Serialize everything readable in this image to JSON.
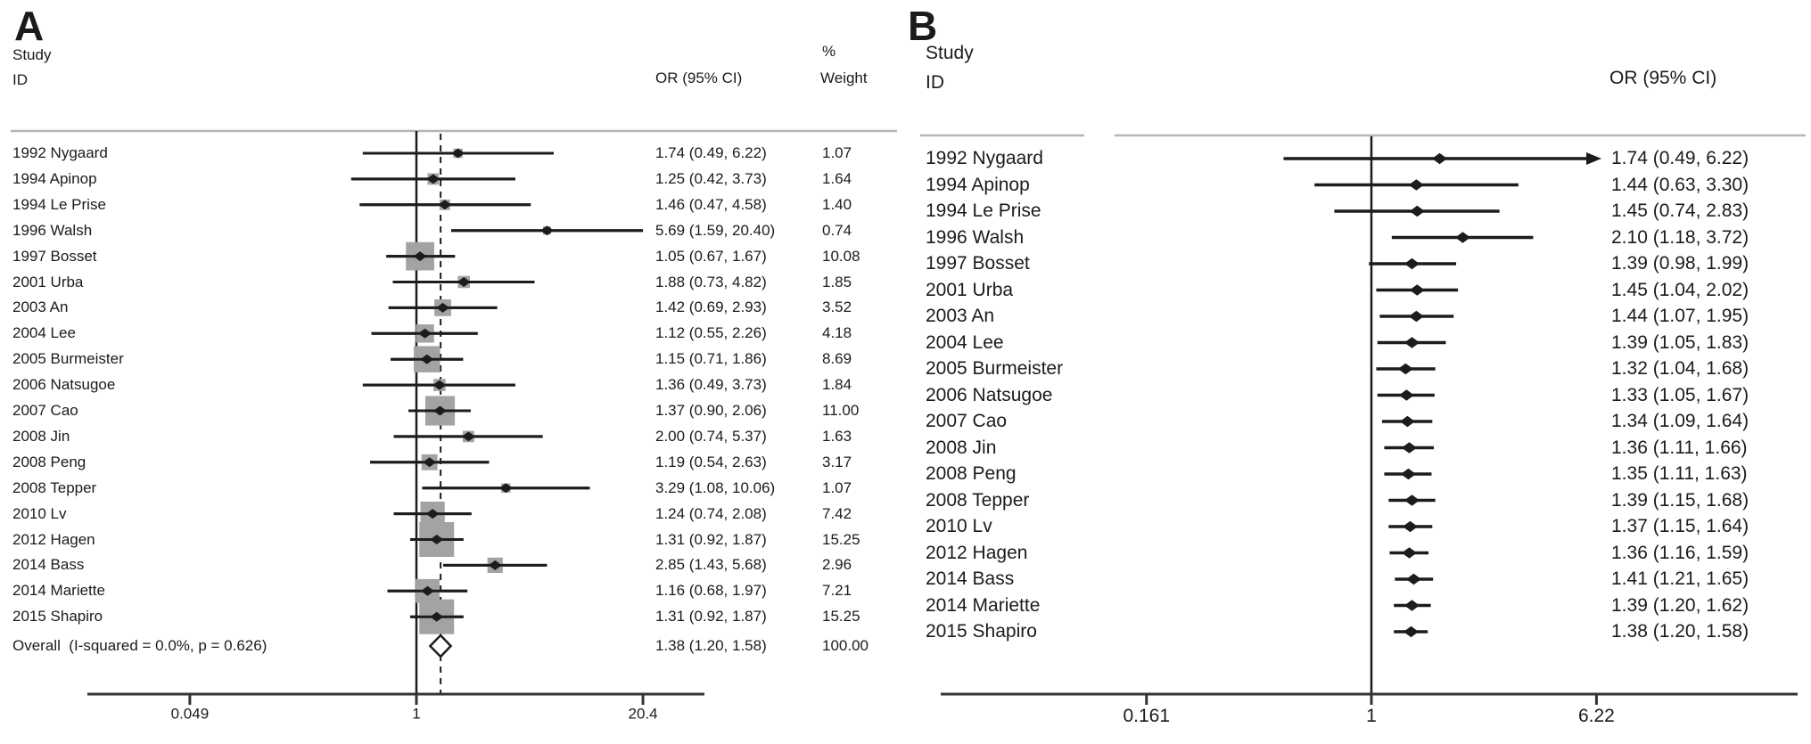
{
  "figure": {
    "panel_a_label": "A",
    "panel_b_label": "B",
    "headers_a": {
      "study": "Study",
      "id": "ID",
      "or": "OR (95% CI)",
      "pct": "%",
      "weight": "Weight"
    },
    "headers_b": {
      "study": "Study",
      "id": "ID",
      "or": "OR (95% CI)"
    }
  },
  "chart_data": [
    {
      "type": "forest",
      "panel": "A",
      "axis_scale": "log",
      "x_ticks": [
        "0.049",
        "1",
        "20.4"
      ],
      "null_line": 1,
      "studies": [
        {
          "id": "1992 Nygaard",
          "est": 1.74,
          "lo": 0.49,
          "hi": 6.22,
          "or_text": "1.74 (0.49, 6.22)",
          "weight": 1.07,
          "weight_text": "1.07"
        },
        {
          "id": "1994 Apinop",
          "est": 1.25,
          "lo": 0.42,
          "hi": 3.73,
          "or_text": "1.25 (0.42, 3.73)",
          "weight": 1.64,
          "weight_text": "1.64"
        },
        {
          "id": "1994 Le Prise",
          "est": 1.46,
          "lo": 0.47,
          "hi": 4.58,
          "or_text": "1.46 (0.47, 4.58)",
          "weight": 1.4,
          "weight_text": "1.40"
        },
        {
          "id": "1996 Walsh",
          "est": 5.69,
          "lo": 1.59,
          "hi": 20.4,
          "or_text": "5.69 (1.59, 20.40)",
          "weight": 0.74,
          "weight_text": "0.74"
        },
        {
          "id": "1997 Bosset",
          "est": 1.05,
          "lo": 0.67,
          "hi": 1.67,
          "or_text": "1.05 (0.67, 1.67)",
          "weight": 10.08,
          "weight_text": "10.08"
        },
        {
          "id": "2001 Urba",
          "est": 1.88,
          "lo": 0.73,
          "hi": 4.82,
          "or_text": "1.88 (0.73, 4.82)",
          "weight": 1.85,
          "weight_text": "1.85"
        },
        {
          "id": "2003 An",
          "est": 1.42,
          "lo": 0.69,
          "hi": 2.93,
          "or_text": "1.42 (0.69, 2.93)",
          "weight": 3.52,
          "weight_text": "3.52"
        },
        {
          "id": "2004 Lee",
          "est": 1.12,
          "lo": 0.55,
          "hi": 2.26,
          "or_text": "1.12 (0.55, 2.26)",
          "weight": 4.18,
          "weight_text": "4.18"
        },
        {
          "id": "2005 Burmeister",
          "est": 1.15,
          "lo": 0.71,
          "hi": 1.86,
          "or_text": "1.15 (0.71, 1.86)",
          "weight": 8.69,
          "weight_text": "8.69"
        },
        {
          "id": "2006 Natsugoe",
          "est": 1.36,
          "lo": 0.49,
          "hi": 3.73,
          "or_text": "1.36 (0.49, 3.73)",
          "weight": 1.84,
          "weight_text": "1.84"
        },
        {
          "id": "2007 Cao",
          "est": 1.37,
          "lo": 0.9,
          "hi": 2.06,
          "or_text": "1.37 (0.90, 2.06)",
          "weight": 11.0,
          "weight_text": "11.00"
        },
        {
          "id": "2008 Jin",
          "est": 2.0,
          "lo": 0.74,
          "hi": 5.37,
          "or_text": "2.00 (0.74, 5.37)",
          "weight": 1.63,
          "weight_text": "1.63"
        },
        {
          "id": "2008 Peng",
          "est": 1.19,
          "lo": 0.54,
          "hi": 2.63,
          "or_text": "1.19 (0.54, 2.63)",
          "weight": 3.17,
          "weight_text": "3.17"
        },
        {
          "id": "2008 Tepper",
          "est": 3.29,
          "lo": 1.08,
          "hi": 10.06,
          "or_text": "3.29 (1.08, 10.06)",
          "weight": 1.07,
          "weight_text": "1.07"
        },
        {
          "id": "2010 Lv",
          "est": 1.24,
          "lo": 0.74,
          "hi": 2.08,
          "or_text": "1.24 (0.74, 2.08)",
          "weight": 7.42,
          "weight_text": "7.42"
        },
        {
          "id": "2012 Hagen",
          "est": 1.31,
          "lo": 0.92,
          "hi": 1.87,
          "or_text": "1.31 (0.92, 1.87)",
          "weight": 15.25,
          "weight_text": "15.25"
        },
        {
          "id": "2014 Bass",
          "est": 2.85,
          "lo": 1.43,
          "hi": 5.68,
          "or_text": "2.85 (1.43, 5.68)",
          "weight": 2.96,
          "weight_text": "2.96"
        },
        {
          "id": "2014 Mariette",
          "est": 1.16,
          "lo": 0.68,
          "hi": 1.97,
          "or_text": "1.16 (0.68, 1.97)",
          "weight": 7.21,
          "weight_text": "7.21"
        },
        {
          "id": "2015 Shapiro",
          "est": 1.31,
          "lo": 0.92,
          "hi": 1.87,
          "or_text": "1.31 (0.92, 1.87)",
          "weight": 15.25,
          "weight_text": "15.25"
        }
      ],
      "overall": {
        "label": "Overall  (I-squared = 0.0%, p = 0.626)",
        "est": 1.38,
        "lo": 1.2,
        "hi": 1.58,
        "or_text": "1.38 (1.20, 1.58)",
        "weight_text": "100.00"
      }
    },
    {
      "type": "forest",
      "panel": "B",
      "axis_scale": "log",
      "x_ticks": [
        "0.161",
        "1",
        "6.22"
      ],
      "null_line": 1,
      "studies": [
        {
          "id": "1992 Nygaard",
          "est": 1.74,
          "lo": 0.49,
          "hi": 6.22,
          "or_text": "1.74 (0.49, 6.22)",
          "arrow_hi": true
        },
        {
          "id": "1994 Apinop",
          "est": 1.44,
          "lo": 0.63,
          "hi": 3.3,
          "or_text": "1.44 (0.63, 3.30)"
        },
        {
          "id": "1994 Le Prise",
          "est": 1.45,
          "lo": 0.74,
          "hi": 2.83,
          "or_text": "1.45 (0.74, 2.83)"
        },
        {
          "id": "1996 Walsh",
          "est": 2.1,
          "lo": 1.18,
          "hi": 3.72,
          "or_text": "2.10 (1.18, 3.72)"
        },
        {
          "id": "1997 Bosset",
          "est": 1.39,
          "lo": 0.98,
          "hi": 1.99,
          "or_text": "1.39 (0.98, 1.99)"
        },
        {
          "id": "2001 Urba",
          "est": 1.45,
          "lo": 1.04,
          "hi": 2.02,
          "or_text": "1.45 (1.04, 2.02)"
        },
        {
          "id": "2003 An",
          "est": 1.44,
          "lo": 1.07,
          "hi": 1.95,
          "or_text": "1.44 (1.07, 1.95)"
        },
        {
          "id": "2004 Lee",
          "est": 1.39,
          "lo": 1.05,
          "hi": 1.83,
          "or_text": "1.39 (1.05, 1.83)"
        },
        {
          "id": "2005 Burmeister",
          "est": 1.32,
          "lo": 1.04,
          "hi": 1.68,
          "or_text": "1.32 (1.04, 1.68)"
        },
        {
          "id": "2006 Natsugoe",
          "est": 1.33,
          "lo": 1.05,
          "hi": 1.67,
          "or_text": "1.33 (1.05, 1.67)"
        },
        {
          "id": "2007 Cao",
          "est": 1.34,
          "lo": 1.09,
          "hi": 1.64,
          "or_text": "1.34 (1.09, 1.64)"
        },
        {
          "id": "2008 Jin",
          "est": 1.36,
          "lo": 1.11,
          "hi": 1.66,
          "or_text": "1.36 (1.11, 1.66)"
        },
        {
          "id": "2008 Peng",
          "est": 1.35,
          "lo": 1.11,
          "hi": 1.63,
          "or_text": "1.35 (1.11, 1.63)"
        },
        {
          "id": "2008 Tepper",
          "est": 1.39,
          "lo": 1.15,
          "hi": 1.68,
          "or_text": "1.39 (1.15, 1.68)"
        },
        {
          "id": "2010 Lv",
          "est": 1.37,
          "lo": 1.15,
          "hi": 1.64,
          "or_text": "1.37 (1.15, 1.64)"
        },
        {
          "id": "2012 Hagen",
          "est": 1.36,
          "lo": 1.16,
          "hi": 1.59,
          "or_text": "1.36 (1.16, 1.59)"
        },
        {
          "id": "2014 Bass",
          "est": 1.41,
          "lo": 1.21,
          "hi": 1.65,
          "or_text": "1.41 (1.21, 1.65)"
        },
        {
          "id": "2014 Mariette",
          "est": 1.39,
          "lo": 1.2,
          "hi": 1.62,
          "or_text": "1.39 (1.20, 1.62)"
        },
        {
          "id": "2015 Shapiro",
          "est": 1.38,
          "lo": 1.2,
          "hi": 1.58,
          "or_text": "1.38 (1.20, 1.58)"
        }
      ]
    }
  ]
}
